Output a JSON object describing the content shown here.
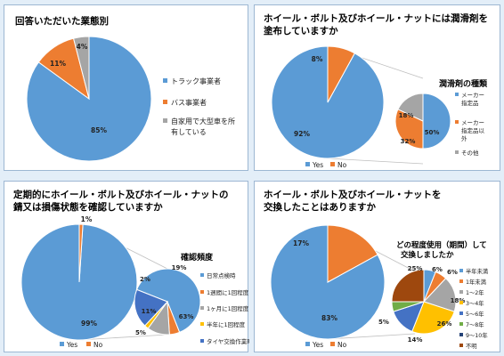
{
  "colors": {
    "blue": "#5b9bd5",
    "orange": "#ed7d31",
    "gray": "#a5a5a5",
    "yellow": "#ffc000",
    "darkblue": "#4472c4",
    "green": "#70ad47",
    "navy": "#264478",
    "brown": "#9e480e"
  },
  "chart_data": [
    {
      "type": "pie",
      "title": "回答いただいた業態別",
      "categories": [
        "トラック事業者",
        "バス事業者",
        "自家用で大型車を所有している"
      ],
      "values": [
        85,
        11,
        4
      ],
      "labels": [
        "85%",
        "11%",
        "4%"
      ],
      "colors": [
        "#5b9bd5",
        "#ed7d31",
        "#a5a5a5"
      ],
      "legend": "right"
    },
    {
      "type": "pie",
      "title": "ホイール・ボルト及びホイール・ナットには潤滑剤を塗布していますか",
      "categories": [
        "Yes",
        "No"
      ],
      "values": [
        92,
        8
      ],
      "labels": [
        "92%",
        "8%"
      ],
      "colors": [
        "#5b9bd5",
        "#ed7d31"
      ],
      "legend": "bottom",
      "sub_pie": {
        "title": "潤滑剤の種類",
        "categories": [
          "メーカー指定品",
          "メーカー指定品以外",
          "その他"
        ],
        "values": [
          50,
          32,
          18
        ],
        "labels": [
          "50%",
          "32%",
          "18%"
        ],
        "colors": [
          "#5b9bd5",
          "#ed7d31",
          "#a5a5a5"
        ]
      }
    },
    {
      "type": "pie",
      "title": "定期的にホイール・ボルト及びホイール・ナットの錆又は損傷状態を確認していますか",
      "categories": [
        "Yes",
        "No"
      ],
      "values": [
        99,
        1
      ],
      "labels": [
        "99%",
        "1%"
      ],
      "colors": [
        "#5b9bd5",
        "#ed7d31"
      ],
      "legend": "bottom",
      "sub_pie": {
        "title": "確認頻度",
        "categories": [
          "日常点検時",
          "1週間に1回程度",
          "1ヶ月に1回程度",
          "半年に1回程度",
          "タイヤ交換作業時"
        ],
        "values": [
          63,
          5,
          11,
          2,
          19
        ],
        "labels": [
          "63%",
          "5%",
          "11%",
          "2%",
          "19%"
        ],
        "colors": [
          "#5b9bd5",
          "#ed7d31",
          "#a5a5a5",
          "#ffc000",
          "#4472c4"
        ]
      }
    },
    {
      "type": "pie",
      "title": "ホイール・ボルト及びホイール・ナットを交換したことはありますか",
      "categories": [
        "Yes",
        "No"
      ],
      "values": [
        83,
        17
      ],
      "labels": [
        "83%",
        "17%"
      ],
      "colors": [
        "#5b9bd5",
        "#ed7d31"
      ],
      "legend": "bottom",
      "sub_pie": {
        "title": "どの程度使用（期間）して交換しましたか",
        "categories": [
          "半年未満",
          "1年未満",
          "1～2年",
          "3～4年",
          "5～6年",
          "7～8年",
          "9～10年",
          "不明"
        ],
        "values": [
          6,
          6,
          18,
          26,
          14,
          5,
          0,
          25
        ],
        "labels": [
          "6%",
          "6%",
          "18%",
          "26%",
          "14%",
          "5%",
          "",
          "25%"
        ],
        "colors": [
          "#5b9bd5",
          "#ed7d31",
          "#a5a5a5",
          "#ffc000",
          "#4472c4",
          "#70ad47",
          "#264478",
          "#9e480e"
        ]
      }
    }
  ]
}
